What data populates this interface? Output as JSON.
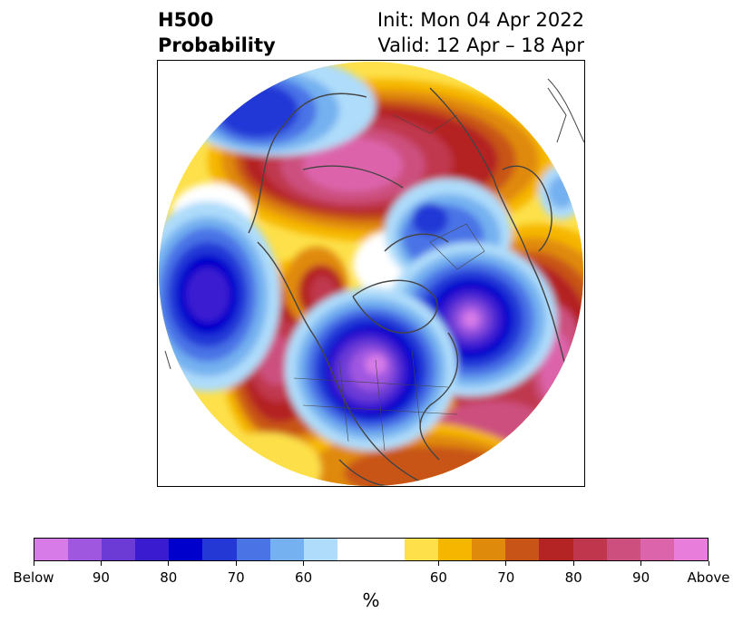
{
  "title": {
    "left_line1": "H500",
    "left_line2": "Probability",
    "right_line1": "Init: Mon 04 Apr 2022",
    "right_line2": "Valid: 12 Apr – 18 Apr"
  },
  "colorbar": {
    "colors": [
      "#d77be8",
      "#9f57e0",
      "#6c3bd6",
      "#3b1bd0",
      "#0000cc",
      "#2438d6",
      "#4a73e6",
      "#75b1f0",
      "#aedcfa",
      "#ffffff",
      "#ffffff",
      "#fde04a",
      "#f6b600",
      "#e08a0c",
      "#c85418",
      "#b42424",
      "#c0374d",
      "#cc4f7e",
      "#dc64aa",
      "#e97ddc"
    ],
    "tick_labels": [
      "Below",
      "90",
      "80",
      "70",
      "60",
      "60",
      "70",
      "80",
      "90",
      "Above"
    ],
    "units": "%"
  },
  "map": {
    "features": [
      {
        "name": "north-pacific-low",
        "sign": "below",
        "peak": 80
      },
      {
        "name": "central-north-america-low",
        "sign": "below",
        "peak": 90
      },
      {
        "name": "north-atlantic-low",
        "sign": "below",
        "peak": 90
      },
      {
        "name": "arctic-siberia-low",
        "sign": "below",
        "peak": 70
      },
      {
        "name": "alaska-chukotka-low",
        "sign": "below",
        "peak": 80
      },
      {
        "name": "siberia-high",
        "sign": "above",
        "peak": 90
      },
      {
        "name": "west-coast-high",
        "sign": "above",
        "peak": 80
      },
      {
        "name": "europe-atlantic-high",
        "sign": "above",
        "peak": 90
      },
      {
        "name": "greenland-high",
        "sign": "above",
        "peak": 80
      }
    ]
  }
}
